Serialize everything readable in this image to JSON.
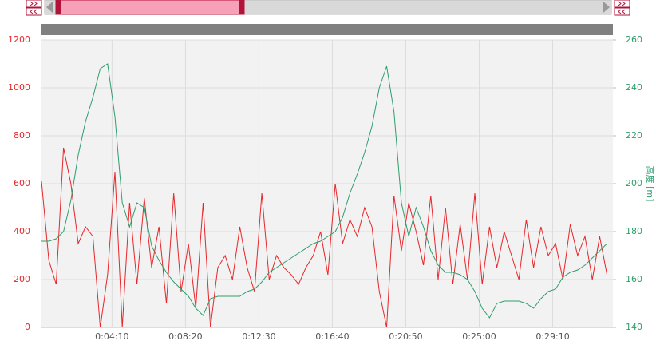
{
  "chart_data": {
    "type": "line",
    "x": [
      10,
      35,
      60,
      85,
      110,
      135,
      160,
      185,
      210,
      235,
      260,
      285,
      310,
      335,
      360,
      385,
      410,
      435,
      460,
      485,
      510,
      535,
      560,
      585,
      610,
      635,
      660,
      685,
      710,
      735,
      760,
      785,
      810,
      835,
      860,
      885,
      910,
      935,
      960,
      985,
      1010,
      1035,
      1060,
      1085,
      1110,
      1135,
      1160,
      1185,
      1210,
      1235,
      1260,
      1285,
      1310,
      1335,
      1360,
      1385,
      1410,
      1435,
      1460,
      1485,
      1510,
      1535,
      1560,
      1585,
      1610,
      1635,
      1660,
      1685,
      1710,
      1735,
      1760,
      1785,
      1810,
      1835,
      1860,
      1885,
      1910,
      1935
    ],
    "xlim": [
      10,
      1955
    ],
    "xticks": [
      {
        "value": 250,
        "label": "0:04:10"
      },
      {
        "value": 500,
        "label": "0:08:20"
      },
      {
        "value": 750,
        "label": "0:12:30"
      },
      {
        "value": 1000,
        "label": "0:16:40"
      },
      {
        "value": 1250,
        "label": "0:20:50"
      },
      {
        "value": 1500,
        "label": "0:25:00"
      },
      {
        "value": 1750,
        "label": "0:29:10"
      }
    ],
    "ylim": [
      0,
      1200
    ],
    "yticks": [
      0,
      200,
      400,
      600,
      800,
      1000,
      1200
    ],
    "y2lim": [
      140,
      260
    ],
    "y2ticks": [
      140,
      160,
      180,
      200,
      220,
      240,
      260
    ],
    "y2label": "高度 [m]",
    "grid": true,
    "series": [
      {
        "color": "#e8262a",
        "values": [
          610,
          280,
          180,
          750,
          600,
          350,
          420,
          380,
          0,
          220,
          650,
          0,
          520,
          180,
          540,
          250,
          420,
          100,
          560,
          150,
          350,
          80,
          520,
          0,
          250,
          300,
          200,
          420,
          250,
          150,
          560,
          200,
          300,
          250,
          220,
          180,
          250,
          300,
          400,
          220,
          600,
          350,
          450,
          380,
          500,
          420,
          150,
          0,
          550,
          320,
          520,
          400,
          260,
          550,
          200,
          500,
          180,
          430,
          200,
          560,
          180,
          420,
          250,
          400,
          300,
          200,
          450,
          250,
          420,
          300,
          350,
          200,
          430,
          300,
          380,
          200,
          380,
          220
        ]
      },
      {
        "color": "#2e9e6e",
        "axis": "y2",
        "values": [
          176,
          176,
          177,
          180,
          193,
          212,
          226,
          236,
          248,
          250,
          228,
          192,
          182,
          192,
          190,
          174,
          168,
          163,
          159,
          156,
          153,
          148,
          145,
          152,
          153,
          153,
          153,
          153,
          155,
          156,
          159,
          163,
          165,
          167,
          169,
          171,
          173,
          175,
          176,
          178,
          180,
          186,
          196,
          204,
          213,
          224,
          240,
          249,
          230,
          192,
          178,
          190,
          182,
          172,
          166,
          163,
          163,
          162,
          160,
          155,
          148,
          144,
          150,
          151,
          151,
          151,
          150,
          148,
          152,
          155,
          156,
          161,
          163,
          164,
          166,
          169,
          172,
          175
        ]
      }
    ]
  }
}
